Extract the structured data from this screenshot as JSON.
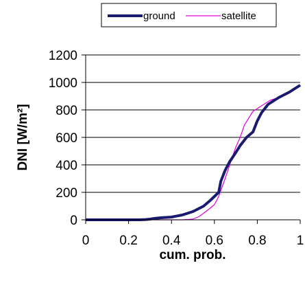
{
  "chart_data": {
    "type": "line",
    "xlabel": "cum. prob.",
    "ylabel": "DNI [W/m²]",
    "xlim": [
      0,
      1
    ],
    "ylim": [
      0,
      1200
    ],
    "x_ticks": [
      "0",
      "0.2",
      "0.4",
      "0.6",
      "0.8",
      "1"
    ],
    "y_ticks": [
      "0",
      "200",
      "400",
      "600",
      "800",
      "1000",
      "1200"
    ],
    "grid": "horizontal",
    "legend_position": "top-center",
    "series": [
      {
        "name": "ground",
        "color": "#1a1a6e",
        "x": [
          0,
          0.25,
          0.28,
          0.3,
          0.32,
          0.35,
          0.4,
          0.45,
          0.5,
          0.55,
          0.58,
          0.6,
          0.62,
          0.63,
          0.65,
          0.67,
          0.7,
          0.72,
          0.75,
          0.78,
          0.8,
          0.82,
          0.85,
          0.9,
          0.95,
          0.98,
          1.0
        ],
        "y": [
          0,
          0,
          2,
          5,
          10,
          15,
          20,
          35,
          60,
          100,
          140,
          170,
          200,
          280,
          360,
          420,
          490,
          540,
          600,
          640,
          720,
          780,
          840,
          890,
          930,
          960,
          980
        ]
      },
      {
        "name": "satellite",
        "color": "#e000e0",
        "x": [
          0,
          0.45,
          0.5,
          0.53,
          0.56,
          0.6,
          0.62,
          0.65,
          0.68,
          0.7,
          0.72,
          0.74,
          0.76,
          0.78,
          0.8,
          0.83,
          0.86,
          0.9,
          0.95,
          1.0
        ],
        "y": [
          0,
          0,
          5,
          25,
          60,
          110,
          170,
          300,
          440,
          530,
          600,
          690,
          740,
          790,
          810,
          840,
          870,
          890,
          930,
          980
        ]
      }
    ]
  }
}
